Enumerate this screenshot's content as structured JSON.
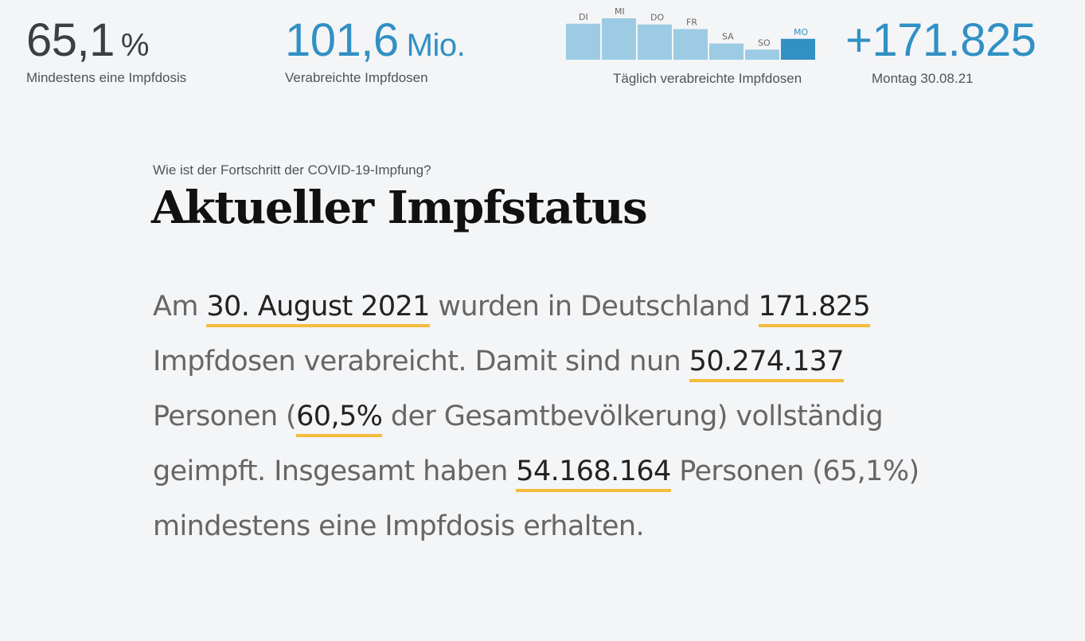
{
  "stats": {
    "first_dose_pct": "65,1",
    "first_dose_unit": "%",
    "first_dose_label": "Mindestens eine Impfdosis",
    "total_doses": "101,6",
    "total_doses_unit": "Mio.",
    "total_doses_label": "Verabreichte Impfdosen",
    "daily_label": "Täglich verabreichte Impfdosen",
    "daily_value": "+171.825",
    "daily_date": "Montag 30.08.21"
  },
  "chart_data": {
    "type": "bar",
    "categories": [
      "DI",
      "MI",
      "DO",
      "FR",
      "SA",
      "SO",
      "MO"
    ],
    "values": [
      1.0,
      1.15,
      0.98,
      0.85,
      0.45,
      0.28,
      0.58
    ],
    "highlight_index": 6,
    "colors": {
      "bar": "#9ccbe3",
      "highlight": "#3190c4",
      "label": "#666666",
      "highlight_label": "#3190c4"
    }
  },
  "article": {
    "kicker": "Wie ist der Fortschritt der COVID-19-Impfung?",
    "headline": "Aktueller Impfstatus",
    "p1": "Am ",
    "date": "30. August 2021",
    "p2": " wurden in Deutschland ",
    "daily_doses": "171.825",
    "p3": " Impfdosen verabreicht. Damit sind nun ",
    "fully_vaccinated": "50.274.137",
    "p4": " Personen (",
    "fully_pct": "60,5%",
    "p5": " der Gesamtbevölkerung) vollständig geimpft. Insgesamt haben ",
    "first_dose_count": "54.168.164",
    "p6": " Personen (65,1%) mindestens eine Impfdosis erhalten."
  },
  "colors": {
    "accent": "#3190c4",
    "highlight_underline": "#f3bd3c",
    "background": "#f4f5f7"
  }
}
